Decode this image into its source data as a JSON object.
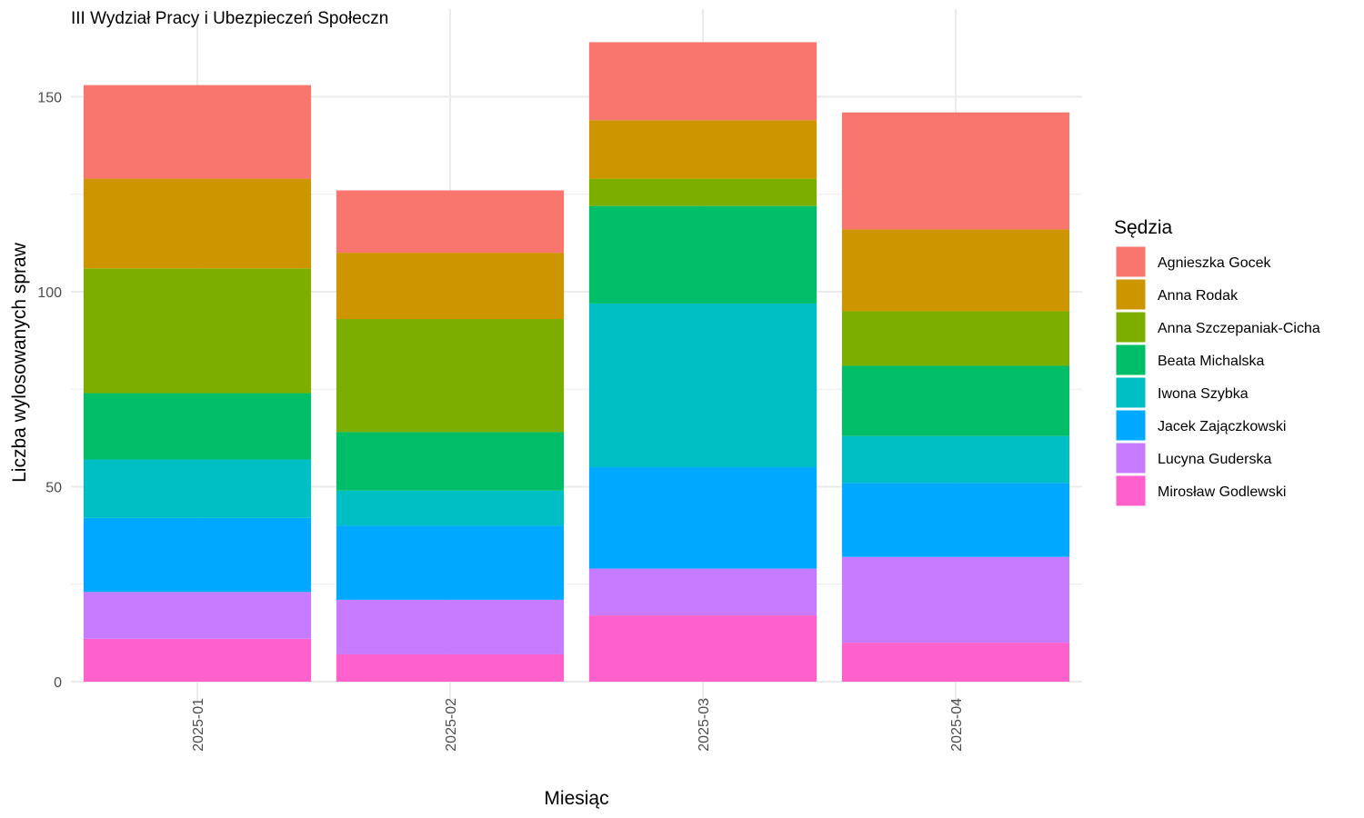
{
  "chart_data": {
    "type": "bar",
    "stacked": true,
    "title": "III Wydział Pracy i Ubezpieczeń Społeczn",
    "xlabel": "Miesiąc",
    "ylabel": "Liczba wylosowanych spraw",
    "categories": [
      "2025-01",
      "2025-02",
      "2025-03",
      "2025-04"
    ],
    "ylim": [
      0,
      165
    ],
    "yticks": [
      0,
      50,
      100,
      150
    ],
    "grid": true,
    "legend": {
      "title": "Sędzia",
      "position": "right"
    },
    "series": [
      {
        "name": "Mirosław Godlewski",
        "color": "#FF61CC",
        "values": [
          11,
          7,
          17,
          10
        ]
      },
      {
        "name": "Lucyna Guderska",
        "color": "#C77CFF",
        "values": [
          12,
          14,
          12,
          22
        ]
      },
      {
        "name": "Jacek Zajączkowski",
        "color": "#00A9FF",
        "values": [
          19,
          19,
          26,
          19
        ]
      },
      {
        "name": "Iwona Szybka",
        "color": "#00BFC4",
        "values": [
          15,
          9,
          42,
          12
        ]
      },
      {
        "name": "Beata Michalska",
        "color": "#00BE67",
        "values": [
          17,
          15,
          25,
          18
        ]
      },
      {
        "name": "Anna Szczepaniak-Cicha",
        "color": "#7CAE00",
        "values": [
          32,
          29,
          7,
          14
        ]
      },
      {
        "name": "Anna Rodak",
        "color": "#CD9600",
        "values": [
          23,
          17,
          15,
          21
        ]
      },
      {
        "name": "Agnieszka Gocek",
        "color": "#F8766D",
        "values": [
          24,
          16,
          20,
          30
        ]
      }
    ]
  }
}
